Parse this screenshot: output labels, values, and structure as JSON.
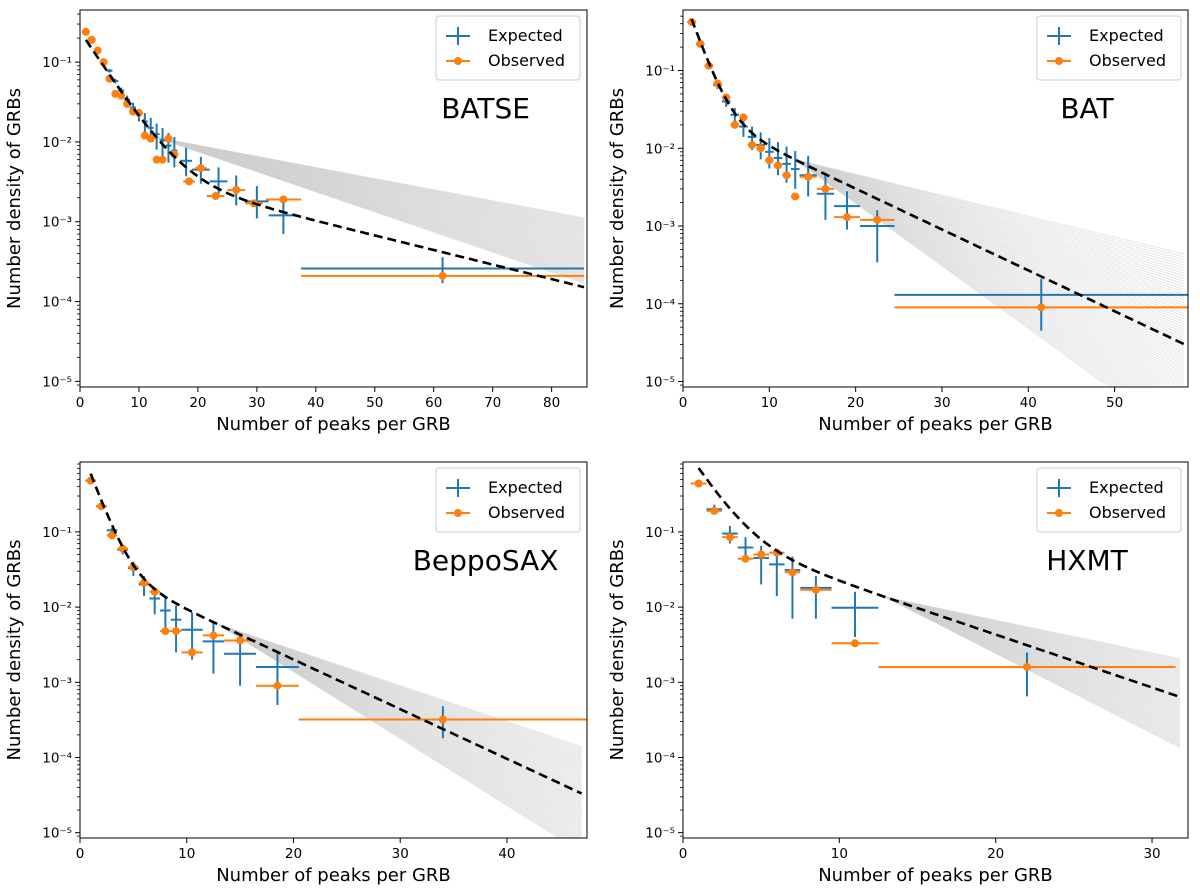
{
  "figure": {
    "ylabel": "Number density of GRBs",
    "xlabel": "Number of peaks per GRB",
    "legend": [
      "Expected",
      "Observed"
    ],
    "colors": {
      "expected": "#1f77b4",
      "observed": "#ff7f0e",
      "model": "#000000",
      "band": "#d0d0d0"
    }
  },
  "chart_data": [
    {
      "type": "scatter",
      "title": "BATSE",
      "xlabel": "Number of peaks per GRB",
      "ylabel": "Number density of GRBs",
      "xlim": [
        0,
        86
      ],
      "ylim": [
        8.5e-06,
        0.45
      ],
      "xticks": [
        0,
        10,
        20,
        30,
        40,
        50,
        60,
        70,
        80
      ],
      "yscale": "log",
      "legend_position": "top-right",
      "model_line": {
        "c0": 0.24,
        "k": 0.26,
        "a1": 0.0055,
        "b1": 0.042
      },
      "band": {
        "lower_rate": 0.058,
        "upper_rate": 0.032
      },
      "expected": [
        {
          "x": 1,
          "y": 0.235,
          "xerr": 0.5,
          "ylo": 0.23,
          "yhi": 0.24
        },
        {
          "x": 2,
          "y": 0.185,
          "xerr": 0.5,
          "ylo": 0.18,
          "yhi": 0.19
        },
        {
          "x": 3,
          "y": 0.14,
          "xerr": 0.5,
          "ylo": 0.135,
          "yhi": 0.145
        },
        {
          "x": 4,
          "y": 0.105,
          "xerr": 0.5,
          "ylo": 0.1,
          "yhi": 0.11
        },
        {
          "x": 5,
          "y": 0.078,
          "xerr": 0.5,
          "ylo": 0.074,
          "yhi": 0.082
        },
        {
          "x": 6,
          "y": 0.058,
          "xerr": 0.5,
          "ylo": 0.054,
          "yhi": 0.062
        },
        {
          "x": 7,
          "y": 0.044,
          "xerr": 0.5,
          "ylo": 0.04,
          "yhi": 0.048
        },
        {
          "x": 8,
          "y": 0.034,
          "xerr": 0.5,
          "ylo": 0.03,
          "yhi": 0.038
        },
        {
          "x": 9,
          "y": 0.027,
          "xerr": 0.5,
          "ylo": 0.023,
          "yhi": 0.031
        },
        {
          "x": 10,
          "y": 0.022,
          "xerr": 0.5,
          "ylo": 0.018,
          "yhi": 0.026
        },
        {
          "x": 11,
          "y": 0.018,
          "xerr": 0.5,
          "ylo": 0.013,
          "yhi": 0.023
        },
        {
          "x": 12,
          "y": 0.015,
          "xerr": 0.5,
          "ylo": 0.01,
          "yhi": 0.02
        },
        {
          "x": 13,
          "y": 0.0125,
          "xerr": 0.5,
          "ylo": 0.008,
          "yhi": 0.017
        },
        {
          "x": 14,
          "y": 0.0105,
          "xerr": 0.5,
          "ylo": 0.0065,
          "yhi": 0.015
        },
        {
          "x": 15,
          "y": 0.009,
          "xerr": 0.5,
          "ylo": 0.0055,
          "yhi": 0.013
        },
        {
          "x": 16,
          "y": 0.0078,
          "xerr": 0.5,
          "ylo": 0.0048,
          "yhi": 0.0115
        },
        {
          "x": 18,
          "y": 0.0058,
          "xerr": 1.0,
          "ylo": 0.0037,
          "yhi": 0.0085
        },
        {
          "x": 20.5,
          "y": 0.0045,
          "xerr": 1.5,
          "ylo": 0.003,
          "yhi": 0.0065
        },
        {
          "x": 23.5,
          "y": 0.0032,
          "xerr": 1.5,
          "ylo": 0.0021,
          "yhi": 0.0048
        },
        {
          "x": 26.5,
          "y": 0.0025,
          "xerr": 1.5,
          "ylo": 0.0016,
          "yhi": 0.0038
        },
        {
          "x": 30,
          "y": 0.0018,
          "xerr": 2.0,
          "ylo": 0.0011,
          "yhi": 0.0028
        },
        {
          "x": 34.5,
          "y": 0.0012,
          "xerr": 2.5,
          "ylo": 0.0007,
          "yhi": 0.0019
        },
        {
          "x": 61.5,
          "y": 0.00026,
          "xerr": 24.0,
          "ylo": 0.00017,
          "yhi": 0.00036
        }
      ],
      "observed": [
        {
          "x": 1,
          "y": 0.24,
          "xerr": 0.5
        },
        {
          "x": 2,
          "y": 0.19,
          "xerr": 0.5
        },
        {
          "x": 3,
          "y": 0.14,
          "xerr": 0.5
        },
        {
          "x": 4,
          "y": 0.1,
          "xerr": 0.5
        },
        {
          "x": 5,
          "y": 0.062,
          "xerr": 0.5
        },
        {
          "x": 6,
          "y": 0.04,
          "xerr": 0.5
        },
        {
          "x": 7,
          "y": 0.038,
          "xerr": 0.5
        },
        {
          "x": 8,
          "y": 0.03,
          "xerr": 0.5
        },
        {
          "x": 9,
          "y": 0.024,
          "xerr": 0.5
        },
        {
          "x": 10,
          "y": 0.023,
          "xerr": 0.5
        },
        {
          "x": 11,
          "y": 0.012,
          "xerr": 0.5
        },
        {
          "x": 12,
          "y": 0.011,
          "xerr": 0.5
        },
        {
          "x": 13,
          "y": 0.006,
          "xerr": 0.5
        },
        {
          "x": 14,
          "y": 0.006,
          "xerr": 0.5
        },
        {
          "x": 15,
          "y": 0.011,
          "xerr": 0.5
        },
        {
          "x": 16,
          "y": 0.007,
          "xerr": 0.5
        },
        {
          "x": 18.5,
          "y": 0.0032,
          "xerr": 1.0
        },
        {
          "x": 20.5,
          "y": 0.0047,
          "xerr": 1.0
        },
        {
          "x": 23,
          "y": 0.0021,
          "xerr": 1.5
        },
        {
          "x": 26.5,
          "y": 0.0025,
          "xerr": 1.5
        },
        {
          "x": 29.5,
          "y": 0.0017,
          "xerr": 1.5
        },
        {
          "x": 34.5,
          "y": 0.0019,
          "xerr": 3.0
        },
        {
          "x": 61.5,
          "y": 0.00021,
          "xerr": 24.0
        }
      ]
    },
    {
      "type": "scatter",
      "title": "BAT",
      "xlabel": "Number of peaks per GRB",
      "ylabel": "Number density of GRBs",
      "xlim": [
        0,
        58.5
      ],
      "ylim": [
        8.5e-06,
        0.6
      ],
      "xticks": [
        0,
        10,
        20,
        30,
        40,
        50
      ],
      "yscale": "log",
      "legend_position": "top-right",
      "model_line": {
        "c0": 0.88,
        "k": 0.72,
        "a1": 0.034,
        "b1": 0.121
      },
      "band": {
        "lower_rate": 0.185,
        "upper_rate": 0.062
      },
      "expected": [
        {
          "x": 1,
          "y": 0.42,
          "xerr": 0.5,
          "ylo": 0.41,
          "yhi": 0.43
        },
        {
          "x": 2,
          "y": 0.22,
          "xerr": 0.5,
          "ylo": 0.21,
          "yhi": 0.23
        },
        {
          "x": 3,
          "y": 0.115,
          "xerr": 0.5,
          "ylo": 0.108,
          "yhi": 0.122
        },
        {
          "x": 4,
          "y": 0.065,
          "xerr": 0.5,
          "ylo": 0.058,
          "yhi": 0.072
        },
        {
          "x": 5,
          "y": 0.04,
          "xerr": 0.5,
          "ylo": 0.034,
          "yhi": 0.046
        },
        {
          "x": 6,
          "y": 0.027,
          "xerr": 0.5,
          "ylo": 0.021,
          "yhi": 0.033
        },
        {
          "x": 7,
          "y": 0.019,
          "xerr": 0.5,
          "ylo": 0.014,
          "yhi": 0.025
        },
        {
          "x": 8,
          "y": 0.014,
          "xerr": 0.5,
          "ylo": 0.0095,
          "yhi": 0.019
        },
        {
          "x": 9,
          "y": 0.011,
          "xerr": 0.5,
          "ylo": 0.0072,
          "yhi": 0.016
        },
        {
          "x": 10,
          "y": 0.009,
          "xerr": 0.5,
          "ylo": 0.0055,
          "yhi": 0.0135
        },
        {
          "x": 11,
          "y": 0.0075,
          "xerr": 0.5,
          "ylo": 0.0045,
          "yhi": 0.012
        },
        {
          "x": 12,
          "y": 0.0063,
          "xerr": 0.5,
          "ylo": 0.0036,
          "yhi": 0.0105
        },
        {
          "x": 13,
          "y": 0.0054,
          "xerr": 0.5,
          "ylo": 0.003,
          "yhi": 0.0092
        },
        {
          "x": 14.5,
          "y": 0.0045,
          "xerr": 1.0,
          "ylo": 0.0024,
          "yhi": 0.008
        },
        {
          "x": 16.5,
          "y": 0.0026,
          "xerr": 1.0,
          "ylo": 0.0012,
          "yhi": 0.0048
        },
        {
          "x": 19,
          "y": 0.0018,
          "xerr": 1.5,
          "ylo": 0.0009,
          "yhi": 0.0028
        },
        {
          "x": 22.5,
          "y": 0.001,
          "xerr": 2.0,
          "ylo": 0.00034,
          "yhi": 0.0016
        },
        {
          "x": 41.5,
          "y": 0.00013,
          "xerr": 17.0,
          "ylo": 4.5e-05,
          "yhi": 0.00021
        }
      ],
      "observed": [
        {
          "x": 1,
          "y": 0.42,
          "xerr": 0.5
        },
        {
          "x": 2,
          "y": 0.22,
          "xerr": 0.5
        },
        {
          "x": 3,
          "y": 0.115,
          "xerr": 0.5
        },
        {
          "x": 4,
          "y": 0.068,
          "xerr": 0.5
        },
        {
          "x": 5,
          "y": 0.045,
          "xerr": 0.5
        },
        {
          "x": 6,
          "y": 0.02,
          "xerr": 0.5
        },
        {
          "x": 7,
          "y": 0.025,
          "xerr": 0.5
        },
        {
          "x": 8,
          "y": 0.011,
          "xerr": 0.5
        },
        {
          "x": 9,
          "y": 0.01,
          "xerr": 0.5
        },
        {
          "x": 10,
          "y": 0.007,
          "xerr": 0.5
        },
        {
          "x": 11,
          "y": 0.006,
          "xerr": 0.5
        },
        {
          "x": 12,
          "y": 0.0045,
          "xerr": 0.5
        },
        {
          "x": 13,
          "y": 0.0024,
          "xerr": 0.5
        },
        {
          "x": 14.5,
          "y": 0.0043,
          "xerr": 1.0
        },
        {
          "x": 16.5,
          "y": 0.003,
          "xerr": 1.0
        },
        {
          "x": 19,
          "y": 0.0013,
          "xerr": 1.5
        },
        {
          "x": 22.5,
          "y": 0.0012,
          "xerr": 2.0
        },
        {
          "x": 41.5,
          "y": 9e-05,
          "xerr": 17.0
        }
      ]
    },
    {
      "type": "scatter",
      "title": "BeppoSAX",
      "xlabel": "Number of peaks per GRB",
      "ylabel": "Number density of GRBs",
      "xlim": [
        0,
        47.5
      ],
      "ylim": [
        8.5e-06,
        0.85
      ],
      "xticks": [
        0,
        10,
        20,
        30,
        40
      ],
      "yscale": "log",
      "legend_position": "top-right",
      "model_line": {
        "c0": 1.35,
        "k": 0.88,
        "a1": 0.042,
        "b1": 0.152
      },
      "band": {
        "lower_rate": 0.205,
        "upper_rate": 0.11
      },
      "expected": [
        {
          "x": 1,
          "y": 0.48,
          "xerr": 0.5,
          "ylo": 0.47,
          "yhi": 0.49
        },
        {
          "x": 2,
          "y": 0.22,
          "xerr": 0.5,
          "ylo": 0.21,
          "yhi": 0.23
        },
        {
          "x": 3,
          "y": 0.105,
          "xerr": 0.5,
          "ylo": 0.097,
          "yhi": 0.113
        },
        {
          "x": 4,
          "y": 0.058,
          "xerr": 0.5,
          "ylo": 0.05,
          "yhi": 0.066
        },
        {
          "x": 5,
          "y": 0.033,
          "xerr": 0.5,
          "ylo": 0.026,
          "yhi": 0.04
        },
        {
          "x": 6,
          "y": 0.02,
          "xerr": 0.5,
          "ylo": 0.014,
          "yhi": 0.026
        },
        {
          "x": 7,
          "y": 0.013,
          "xerr": 0.5,
          "ylo": 0.008,
          "yhi": 0.018
        },
        {
          "x": 8,
          "y": 0.009,
          "xerr": 0.5,
          "ylo": 0.005,
          "yhi": 0.0135
        },
        {
          "x": 9,
          "y": 0.0068,
          "xerr": 0.5,
          "ylo": 0.0025,
          "yhi": 0.0105
        },
        {
          "x": 10.5,
          "y": 0.005,
          "xerr": 1.0,
          "ylo": 0.002,
          "yhi": 0.0085
        },
        {
          "x": 12.5,
          "y": 0.0035,
          "xerr": 1.0,
          "ylo": 0.0013,
          "yhi": 0.0062
        },
        {
          "x": 15,
          "y": 0.0024,
          "xerr": 1.5,
          "ylo": 0.0009,
          "yhi": 0.0043
        },
        {
          "x": 18.5,
          "y": 0.0016,
          "xerr": 2.0,
          "ylo": 0.0005,
          "yhi": 0.0026
        },
        {
          "x": 34,
          "y": 0.00032,
          "xerr": 13.5,
          "ylo": 0.00018,
          "yhi": 0.00048
        }
      ],
      "observed": [
        {
          "x": 1,
          "y": 0.48,
          "xerr": 0.5
        },
        {
          "x": 2,
          "y": 0.22,
          "xerr": 0.5
        },
        {
          "x": 3,
          "y": 0.09,
          "xerr": 0.5
        },
        {
          "x": 4,
          "y": 0.06,
          "xerr": 0.5
        },
        {
          "x": 5,
          "y": 0.034,
          "xerr": 0.5
        },
        {
          "x": 6,
          "y": 0.021,
          "xerr": 0.5
        },
        {
          "x": 7,
          "y": 0.016,
          "xerr": 0.5
        },
        {
          "x": 8,
          "y": 0.0048,
          "xerr": 0.5
        },
        {
          "x": 9,
          "y": 0.0048,
          "xerr": 0.5
        },
        {
          "x": 10.5,
          "y": 0.0025,
          "xerr": 1.0
        },
        {
          "x": 12.5,
          "y": 0.0042,
          "xerr": 1.0
        },
        {
          "x": 15,
          "y": 0.0036,
          "xerr": 1.5
        },
        {
          "x": 18.5,
          "y": 0.0009,
          "xerr": 2.0
        },
        {
          "x": 34,
          "y": 0.00032,
          "xerr": 13.5
        }
      ]
    },
    {
      "type": "scatter",
      "title": "HXMT",
      "xlabel": "Number of peaks per GRB",
      "ylabel": "Number density of GRBs",
      "xlim": [
        0,
        32.3
      ],
      "ylim": [
        8.5e-06,
        0.85
      ],
      "xticks": [
        0,
        10,
        20,
        30
      ],
      "yscale": "log",
      "legend_position": "top-right",
      "model_line": {
        "c0": 1.3,
        "k": 0.75,
        "a1": 0.11,
        "b1": 0.162
      },
      "band": {
        "lower_rate": 0.245,
        "upper_rate": 0.1
      },
      "expected": [
        {
          "x": 1,
          "y": 0.44,
          "xerr": 0.5,
          "ylo": 0.42,
          "yhi": 0.46
        },
        {
          "x": 2,
          "y": 0.2,
          "xerr": 0.5,
          "ylo": 0.17,
          "yhi": 0.23
        },
        {
          "x": 3,
          "y": 0.095,
          "xerr": 0.5,
          "ylo": 0.07,
          "yhi": 0.12
        },
        {
          "x": 4,
          "y": 0.062,
          "xerr": 0.5,
          "ylo": 0.04,
          "yhi": 0.085
        },
        {
          "x": 5,
          "y": 0.045,
          "xerr": 0.5,
          "ylo": 0.02,
          "yhi": 0.065
        },
        {
          "x": 6,
          "y": 0.037,
          "xerr": 0.5,
          "ylo": 0.014,
          "yhi": 0.058
        },
        {
          "x": 7,
          "y": 0.031,
          "xerr": 0.5,
          "ylo": 0.007,
          "yhi": 0.047
        },
        {
          "x": 8.5,
          "y": 0.018,
          "xerr": 1.0,
          "ylo": 0.007,
          "yhi": 0.026
        },
        {
          "x": 11,
          "y": 0.0098,
          "xerr": 1.5,
          "ylo": 0.004,
          "yhi": 0.016
        },
        {
          "x": 22,
          "y": 0.0016,
          "xerr": 9.5,
          "ylo": 0.00065,
          "yhi": 0.0025
        }
      ],
      "observed": [
        {
          "x": 1,
          "y": 0.44,
          "xerr": 0.5
        },
        {
          "x": 2,
          "y": 0.19,
          "xerr": 0.5
        },
        {
          "x": 3,
          "y": 0.085,
          "xerr": 0.5
        },
        {
          "x": 4,
          "y": 0.044,
          "xerr": 0.5
        },
        {
          "x": 5,
          "y": 0.05,
          "xerr": 0.5
        },
        {
          "x": 6,
          "y": 0.053,
          "xerr": 0.5
        },
        {
          "x": 7,
          "y": 0.029,
          "xerr": 0.5
        },
        {
          "x": 8.5,
          "y": 0.017,
          "xerr": 1.0
        },
        {
          "x": 11,
          "y": 0.0033,
          "xerr": 1.5
        },
        {
          "x": 22,
          "y": 0.0016,
          "xerr": 9.5
        }
      ]
    }
  ]
}
